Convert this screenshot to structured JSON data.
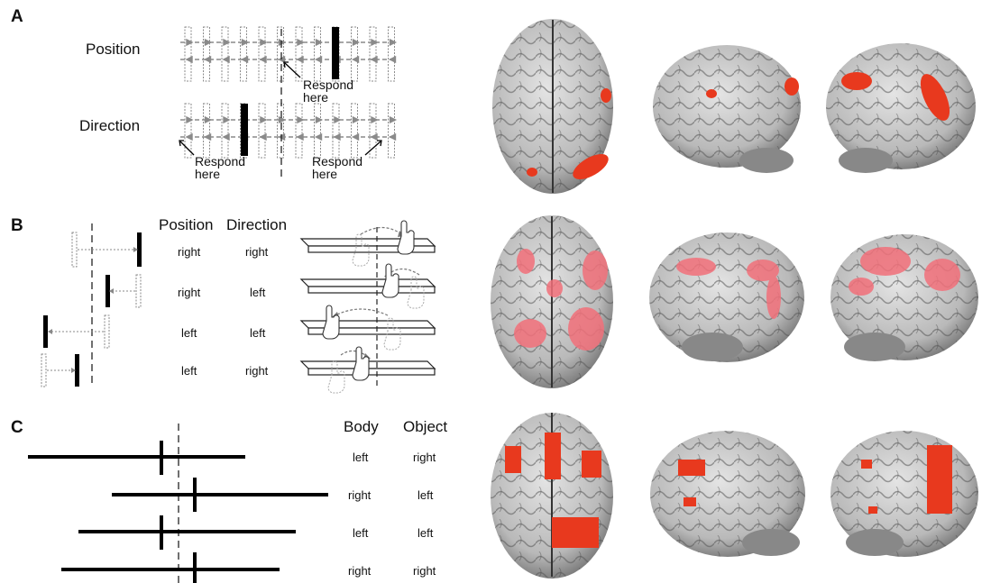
{
  "figure": {
    "panels": [
      "A",
      "B",
      "C"
    ]
  },
  "panel_a": {
    "row_labels": [
      "Position",
      "Direction"
    ],
    "respond_here": "Respond here"
  },
  "panel_b": {
    "headers": [
      "Position",
      "Direction"
    ],
    "rows": [
      {
        "position": "right",
        "direction": "right"
      },
      {
        "position": "right",
        "direction": "left"
      },
      {
        "position": "left",
        "direction": "left"
      },
      {
        "position": "left",
        "direction": "right"
      }
    ]
  },
  "panel_c": {
    "headers": [
      "Body",
      "Object"
    ],
    "rows": [
      {
        "body": "left",
        "object": "right"
      },
      {
        "body": "right",
        "object": "left"
      },
      {
        "body": "left",
        "object": "left"
      },
      {
        "body": "right",
        "object": "right"
      }
    ]
  },
  "colors": {
    "activation": "#e8391e",
    "activation_soft": "#f2707a",
    "brain": "#c9c9c9",
    "arrow": "#8a8a8a"
  },
  "icons": [
    "hand-icon",
    "brain-render",
    "arrow-icon"
  ]
}
